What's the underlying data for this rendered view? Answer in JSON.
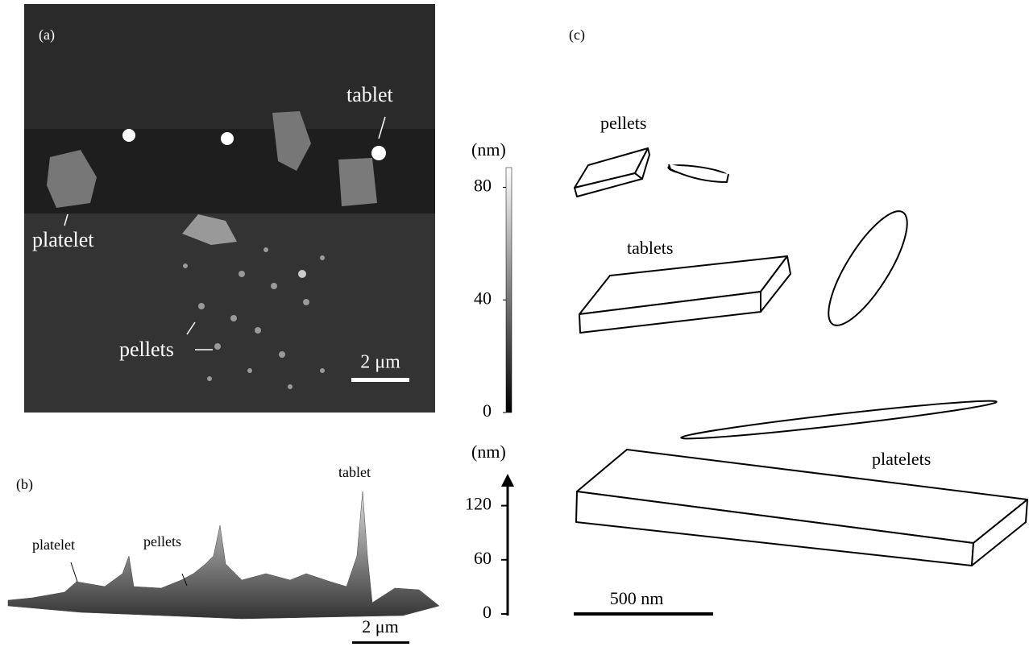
{
  "panel_a": {
    "label": "(a)",
    "annotations": [
      "tablet",
      "platelet",
      "pellets"
    ],
    "scale_bar": "2 μm"
  },
  "panel_b": {
    "label": "(b)",
    "annotations": [
      "tablet",
      "platelet",
      "pellets"
    ],
    "scale_bar": "2 μm"
  },
  "color_scale": {
    "unit": "(nm)",
    "ylim": [
      0,
      87
    ],
    "ticks": [
      0,
      40,
      80
    ]
  },
  "height_scale": {
    "unit": "(nm)",
    "ylim": [
      0,
      150
    ],
    "ticks": [
      0,
      60,
      120
    ]
  },
  "panel_c": {
    "label": "(c)",
    "shapes": [
      "pellets",
      "tablets",
      "platelets"
    ],
    "scale_bar": "500 nm"
  }
}
